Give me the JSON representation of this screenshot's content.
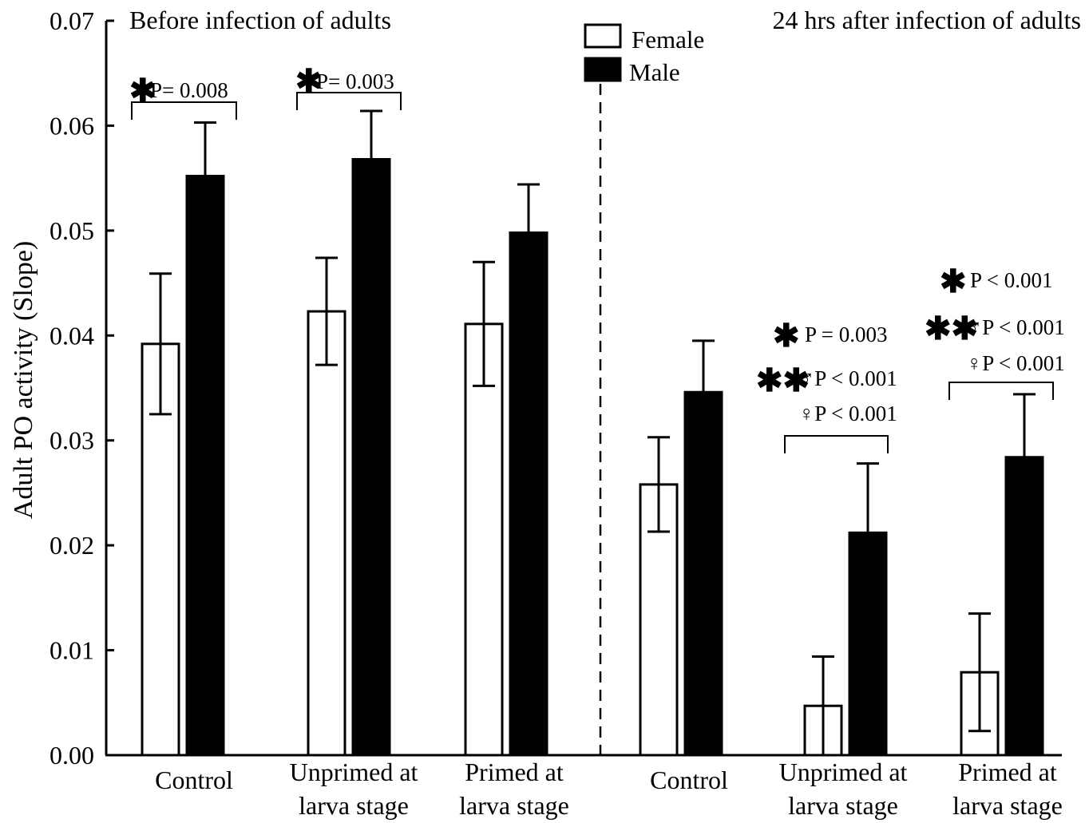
{
  "chart_data": {
    "type": "bar",
    "ylabel": "Adult PO activity (Slope)",
    "ylim": [
      0,
      0.07
    ],
    "yticks": [
      "0.00",
      "0.01",
      "0.02",
      "0.03",
      "0.04",
      "0.05",
      "0.06",
      "0.07"
    ],
    "panels": [
      {
        "title": "Before infection of adults"
      },
      {
        "title": "24 hrs after infection of adults"
      }
    ],
    "categories": [
      {
        "lines": [
          "Control"
        ]
      },
      {
        "lines": [
          "Unprimed at",
          "larva stage"
        ]
      },
      {
        "lines": [
          "Primed at",
          "larva stage"
        ]
      },
      {
        "lines": [
          "Control"
        ]
      },
      {
        "lines": [
          "Unprimed at",
          "larva stage"
        ]
      },
      {
        "lines": [
          "Primed at",
          "larva stage"
        ]
      }
    ],
    "series": [
      {
        "name": "Female",
        "fill": "#ffffff",
        "values": [
          0.0392,
          0.0423,
          0.0411,
          0.0258,
          0.0047,
          0.0079
        ],
        "err": [
          0.0067,
          0.0051,
          0.0059,
          0.0045,
          0.0047,
          0.0056
        ]
      },
      {
        "name": "Male",
        "fill": "#000000",
        "values": [
          0.0552,
          0.0568,
          0.0498,
          0.0346,
          0.0212,
          0.0284
        ],
        "err": [
          0.0051,
          0.0046,
          0.0046,
          0.0049,
          0.0066,
          0.006
        ]
      }
    ],
    "annotations": {
      "g0": {
        "star": "✱",
        "text": "P= 0.008"
      },
      "g1": {
        "star": "✱",
        "text": "P= 0.003"
      },
      "g4": [
        {
          "star": "✱",
          "text": "P = 0.003"
        },
        {
          "star": "✱✱",
          "text": "♂P < 0.001"
        },
        {
          "star": "",
          "text": "♀P < 0.001"
        }
      ],
      "g5": [
        {
          "star": "✱",
          "text": "P < 0.001"
        },
        {
          "star": "✱✱",
          "text": "♂P < 0.001"
        },
        {
          "star": "",
          "text": "♀P < 0.001"
        }
      ]
    }
  }
}
